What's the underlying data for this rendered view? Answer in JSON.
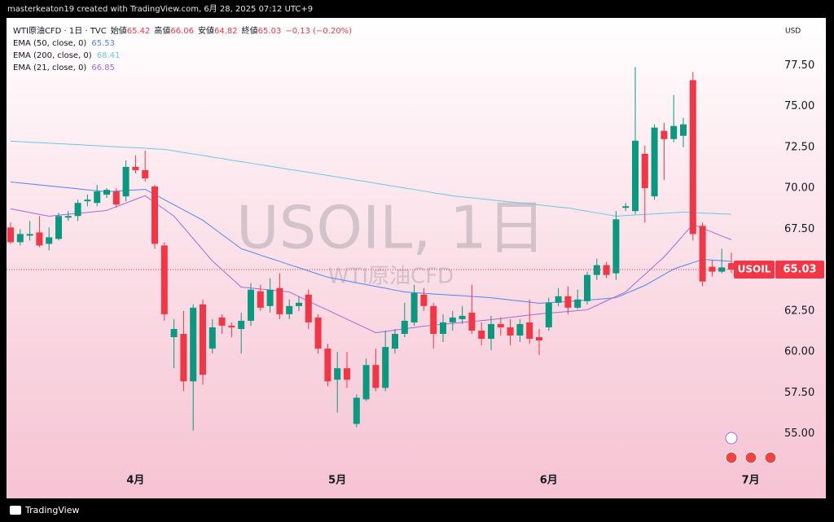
{
  "attribution": "masterkeaton19 created with TradingView.com, 6月 28, 2025 07:12 UTC+9",
  "branding": "TradingView",
  "chart_data": {
    "type": "candlestick",
    "title": "WTI原油CFD · 1日 · TVC",
    "symbol": "USOIL",
    "watermark": "USOIL, 1日",
    "watermark_subtitle": "WTI原油CFD",
    "currency": "USD",
    "ohlc_labels": [
      "始値",
      "高値",
      "安値",
      "終値"
    ],
    "change": {
      "value": -0.13,
      "label": "−0.13 (−0.20%)"
    },
    "up_color": "#089981",
    "down_color": "#f23645",
    "grid": false,
    "categories": [
      null,
      null,
      null,
      null,
      null,
      null,
      null,
      null,
      null,
      null,
      null,
      null,
      null,
      "4月",
      null,
      null,
      null,
      null,
      null,
      null,
      null,
      null,
      null,
      null,
      null,
      null,
      null,
      null,
      null,
      null,
      null,
      null,
      null,
      null,
      "5月",
      null,
      null,
      null,
      null,
      null,
      null,
      null,
      null,
      null,
      null,
      null,
      null,
      null,
      null,
      null,
      null,
      null,
      null,
      null,
      null,
      null,
      "6月",
      null,
      null,
      null,
      null,
      null,
      null,
      null,
      null,
      null,
      null,
      null,
      null,
      null,
      null,
      null,
      null,
      null,
      null,
      null,
      null,
      "7月"
    ],
    "open": [
      67.6,
      66.7,
      67.1,
      67.3,
      66.6,
      66.9,
      68.2,
      68.3,
      69.2,
      69.1,
      69.6,
      69.8,
      69.5,
      71.3,
      71.1,
      70.1,
      66.5,
      60.9,
      61.1,
      58.2,
      62.9,
      60.2,
      62.1,
      61.6,
      61.4,
      61.9,
      63.7,
      62.8,
      63.9,
      62.3,
      62.8,
      63.5,
      62.1,
      60.2,
      58.3,
      59.0,
      55.6,
      57.1,
      59.2,
      57.8,
      60.2,
      61.1,
      61.8,
      63.5,
      62.8,
      61.1,
      61.8,
      62.0,
      62.4,
      61.3,
      60.8,
      61.7,
      61.5,
      61.0,
      61.8,
      60.9,
      61.5,
      63.0,
      63.4,
      62.7,
      63.1,
      64.7,
      65.3,
      64.8,
      68.8,
      68.6,
      72.1,
      69.5,
      73.5,
      73.0,
      73.2,
      76.6,
      67.7,
      65.2,
      64.9,
      65.42,
      null,
      null
    ],
    "high": [
      67.9,
      67.5,
      68.0,
      68.3,
      67.6,
      68.5,
      68.6,
      69.3,
      69.6,
      70.2,
      70.0,
      70.0,
      71.7,
      72.0,
      72.3,
      70.2,
      66.7,
      62.0,
      62.5,
      62.9,
      63.2,
      62.0,
      62.3,
      61.8,
      62.4,
      64.2,
      64.1,
      64.5,
      64.8,
      63.2,
      63.4,
      63.8,
      62.3,
      60.5,
      60.0,
      60.0,
      57.4,
      59.6,
      60.2,
      61.3,
      61.4,
      63.0,
      64.1,
      63.9,
      63.0,
      62.3,
      62.5,
      62.8,
      64.1,
      61.8,
      62.2,
      62.1,
      62.0,
      62.0,
      63.2,
      61.4,
      63.3,
      63.9,
      64.0,
      63.8,
      64.9,
      65.7,
      65.5,
      68.6,
      69.1,
      77.4,
      72.6,
      73.9,
      74.0,
      75.7,
      74.3,
      77.1,
      67.9,
      65.6,
      66.3,
      66.06,
      null,
      null
    ],
    "low": [
      66.6,
      66.5,
      66.8,
      66.4,
      66.2,
      66.8,
      68.0,
      68.0,
      68.9,
      68.9,
      69.4,
      68.8,
      69.2,
      70.9,
      70.4,
      66.3,
      61.9,
      59.0,
      57.6,
      55.2,
      58.0,
      59.9,
      61.1,
      60.9,
      59.9,
      61.6,
      62.5,
      62.4,
      62.0,
      62.0,
      62.5,
      61.4,
      59.9,
      57.9,
      56.3,
      57.8,
      55.4,
      57.0,
      57.6,
      57.6,
      59.9,
      60.9,
      61.6,
      62.5,
      60.2,
      60.6,
      61.3,
      61.7,
      61.1,
      60.4,
      60.1,
      61.0,
      60.4,
      60.6,
      60.5,
      59.8,
      61.3,
      62.8,
      62.3,
      62.6,
      62.9,
      64.4,
      64.5,
      64.4,
      68.6,
      68.4,
      67.9,
      69.3,
      70.5,
      72.8,
      72.5,
      66.8,
      64.0,
      64.6,
      64.8,
      64.82,
      null,
      null
    ],
    "close": [
      66.7,
      67.2,
      67.2,
      66.5,
      67.0,
      68.3,
      68.3,
      69.1,
      69.3,
      69.8,
      69.9,
      69.0,
      71.3,
      71.1,
      70.6,
      66.6,
      62.3,
      61.4,
      58.2,
      62.7,
      58.6,
      61.5,
      61.6,
      61.5,
      61.9,
      63.8,
      62.7,
      63.8,
      62.3,
      62.8,
      63.0,
      61.8,
      60.2,
      58.2,
      59.0,
      58.3,
      57.2,
      59.2,
      57.8,
      60.3,
      61.1,
      61.9,
      63.6,
      62.8,
      61.1,
      61.8,
      62.1,
      62.2,
      61.3,
      60.8,
      61.7,
      61.5,
      61.0,
      61.7,
      60.8,
      60.7,
      63.0,
      63.4,
      62.7,
      63.2,
      64.7,
      65.3,
      64.7,
      68.1,
      68.9,
      72.9,
      70.0,
      73.7,
      73.0,
      73.8,
      73.9,
      67.2,
      64.3,
      64.9,
      65.16,
      65.03,
      null,
      null
    ],
    "series": [
      {
        "name": "EMA (50, close, 0)",
        "color": "#4f86f0",
        "values": [
          70.38,
          70.32,
          70.26,
          70.2,
          70.14,
          70.08,
          70.02,
          69.96,
          69.9,
          69.84,
          69.78,
          69.82,
          69.86,
          69.89,
          69.93,
          69.62,
          69.3,
          68.99,
          68.67,
          68.36,
          68.04,
          67.61,
          67.17,
          66.74,
          66.3,
          66.11,
          65.91,
          65.72,
          65.53,
          65.33,
          65.14,
          64.95,
          64.75,
          64.56,
          64.45,
          64.34,
          64.22,
          64.11,
          64.0,
          63.89,
          63.77,
          63.66,
          63.62,
          63.58,
          63.54,
          63.5,
          63.46,
          63.43,
          63.39,
          63.35,
          63.31,
          63.24,
          63.17,
          63.11,
          63.04,
          62.97,
          63.0,
          63.04,
          63.07,
          63.12,
          63.17,
          63.21,
          63.26,
          63.31,
          63.56,
          63.81,
          64.06,
          64.39,
          64.73,
          65.06,
          65.26,
          65.45,
          65.65,
          65.61,
          65.57,
          65.53,
          null,
          null
        ]
      },
      {
        "name": "EMA (200, close, 0)",
        "color": "#6fc6e0",
        "values": [
          72.87,
          72.84,
          72.81,
          72.78,
          72.75,
          72.72,
          72.69,
          72.66,
          72.62,
          72.59,
          72.56,
          72.53,
          72.5,
          72.47,
          72.44,
          72.4,
          72.37,
          72.28,
          72.18,
          72.09,
          72.0,
          71.9,
          71.81,
          71.71,
          71.62,
          71.53,
          71.43,
          71.34,
          71.25,
          71.15,
          71.06,
          70.97,
          70.87,
          70.78,
          70.68,
          70.59,
          70.49,
          70.4,
          70.3,
          70.2,
          70.11,
          70.01,
          69.92,
          69.82,
          69.72,
          69.63,
          69.53,
          69.47,
          69.41,
          69.35,
          69.28,
          69.22,
          69.16,
          69.1,
          69.04,
          68.98,
          68.91,
          68.85,
          68.79,
          68.69,
          68.59,
          68.49,
          68.39,
          68.29,
          68.33,
          68.36,
          68.4,
          68.43,
          68.47,
          68.5,
          68.54,
          68.51,
          68.48,
          68.46,
          68.43,
          68.41,
          null,
          null
        ]
      },
      {
        "name": "EMA (21, close, 0)",
        "color": "#a36ad6",
        "values": [
          68.74,
          68.63,
          68.51,
          68.4,
          68.29,
          68.35,
          68.41,
          68.46,
          68.52,
          68.58,
          68.64,
          68.87,
          69.09,
          69.32,
          69.54,
          69.12,
          68.71,
          68.29,
          67.61,
          66.92,
          66.24,
          65.55,
          65.02,
          64.49,
          63.96,
          63.9,
          63.84,
          63.78,
          63.72,
          63.66,
          63.38,
          63.1,
          62.82,
          62.55,
          62.27,
          62.0,
          61.72,
          61.45,
          61.17,
          61.25,
          61.33,
          61.41,
          61.49,
          61.57,
          61.63,
          61.69,
          61.74,
          61.8,
          61.86,
          61.91,
          61.97,
          62.04,
          62.11,
          62.18,
          62.25,
          62.32,
          62.37,
          62.42,
          62.47,
          62.52,
          62.57,
          62.84,
          63.12,
          63.39,
          63.66,
          64.2,
          64.73,
          65.27,
          65.8,
          66.46,
          67.13,
          67.79,
          67.55,
          67.32,
          67.08,
          66.85,
          null,
          null
        ]
      }
    ],
    "ylim": [
      51.4,
      80.4
    ],
    "yticks": [
      {
        "value": 55,
        "label": "55.00"
      },
      {
        "value": 57.5,
        "label": "57.50"
      },
      {
        "value": 60,
        "label": "60.00"
      },
      {
        "value": 62.5,
        "label": "62.50"
      },
      {
        "value": 65,
        "label": "65.00"
      },
      {
        "value": 67.5,
        "label": "67.50"
      },
      {
        "value": 70,
        "label": "70.00"
      },
      {
        "value": 72.5,
        "label": "72.50"
      },
      {
        "value": 75,
        "label": "75.00"
      },
      {
        "value": 77.5,
        "label": "77.50"
      }
    ]
  }
}
